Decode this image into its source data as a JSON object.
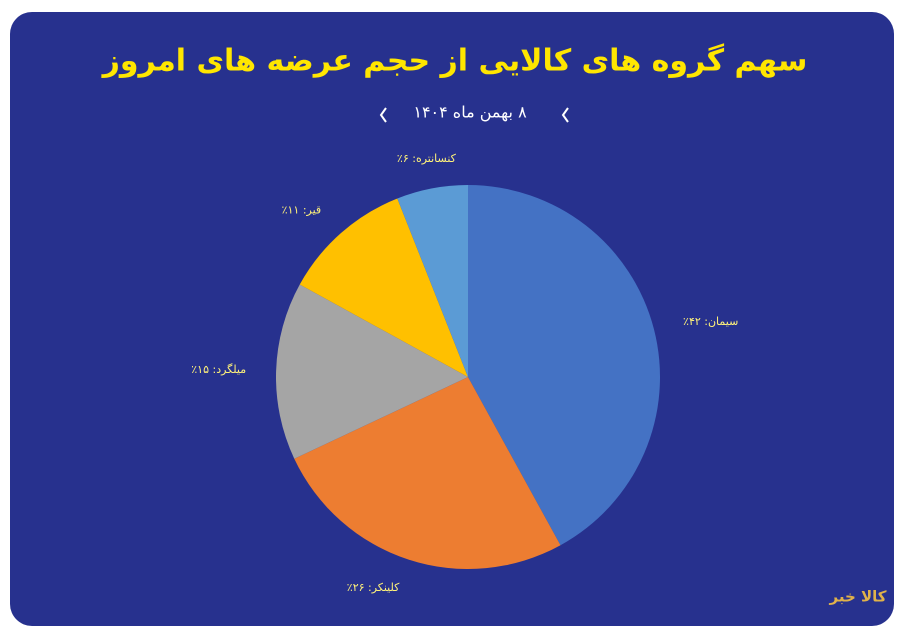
{
  "chart_data": {
    "type": "pie",
    "title": "سهم گروه های کالایی از حجم عرضه های امروز",
    "subtitle": "۸ بهمن ماه ۱۴۰۴",
    "values": [
      42,
      26,
      15,
      11,
      6
    ],
    "value_labels": [
      "سیمان: ۴۲٪",
      "کلینکر: ۲۶٪",
      "میلگرد: ۱۵٪",
      "قیر: ۱۱٪",
      "کنسانتره: ۶٪"
    ],
    "colors": [
      "#4472c4",
      "#ed7d31",
      "#a5a5a5",
      "#ffc000",
      "#5b9bd5"
    ],
    "logo": "کالا خبر"
  }
}
